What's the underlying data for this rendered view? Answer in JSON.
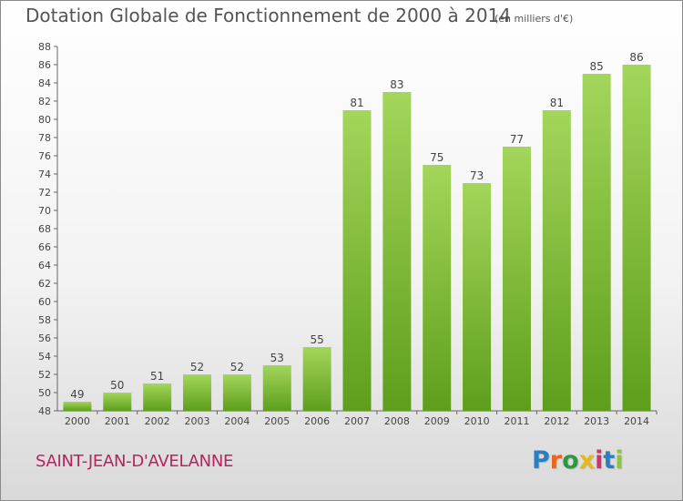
{
  "title": "Dotation Globale de Fonctionnement de 2000 à 2014",
  "subtitle": "(en milliers d'€)",
  "commune": "SAINT-JEAN-D'AVELANNE",
  "brand": "Proxiti",
  "colors": {
    "bar_light": "#a3d65a",
    "bar_dark": "#5e9e1c",
    "title": "#555555",
    "commune": "#b5245e"
  },
  "chart_data": {
    "type": "bar",
    "categories": [
      "2000",
      "2001",
      "2002",
      "2003",
      "2004",
      "2005",
      "2006",
      "2007",
      "2008",
      "2009",
      "2010",
      "2011",
      "2012",
      "2013",
      "2014"
    ],
    "values": [
      49,
      50,
      51,
      52,
      52,
      53,
      55,
      81,
      83,
      75,
      73,
      77,
      81,
      85,
      86
    ],
    "ylim": [
      48,
      88
    ],
    "yticks": [
      48,
      50,
      52,
      54,
      56,
      58,
      60,
      62,
      64,
      66,
      68,
      70,
      72,
      74,
      76,
      78,
      80,
      82,
      84,
      86,
      88
    ],
    "grid": false,
    "data_labels": true
  }
}
